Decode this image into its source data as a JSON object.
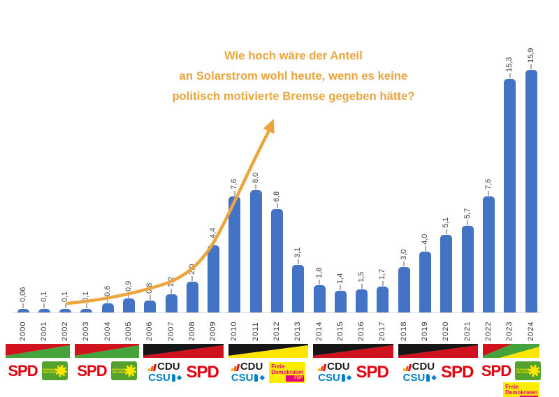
{
  "headline": {
    "line1": "Wie hoch wäre der Anteil",
    "line2": "an Solarstrom wohl heute, wenn es keine",
    "line3": "politisch motivierte Bremse gegeben hätte?"
  },
  "chart_data": {
    "type": "bar",
    "title": "",
    "xlabel": "",
    "ylabel": "",
    "categories": [
      "2000",
      "2001",
      "2002",
      "2003",
      "2004",
      "2005",
      "2006",
      "2007",
      "2008",
      "2009",
      "2010",
      "2011",
      "2012",
      "2013",
      "2014",
      "2015",
      "2016",
      "2017",
      "2018",
      "2019",
      "2020",
      "2021",
      "2022",
      "2023",
      "2024"
    ],
    "values": [
      0.06,
      0.1,
      0.1,
      0.1,
      0.6,
      0.9,
      0.8,
      1.2,
      2.0,
      4.4,
      7.6,
      8.0,
      6.8,
      3.1,
      1.8,
      1.4,
      1.5,
      1.7,
      3.0,
      4.0,
      5.1,
      5.7,
      7.6,
      15.3,
      15.9
    ],
    "value_labels": [
      "0,06",
      "0,1",
      "0,1",
      "0,1",
      "0,6",
      "0,9",
      "0,8",
      "1,2",
      "2,0",
      "4,4",
      "7,6",
      "8,0",
      "6,8",
      "3,1",
      "1,8",
      "1,4",
      "1,5",
      "1,7",
      "3,0",
      "4,0",
      "5,1",
      "5,7",
      "7,6",
      "15,3",
      "15,9"
    ],
    "ylim": [
      0,
      16.5
    ],
    "grid": false,
    "legend": "none",
    "annotation": "orange exponential growth arrow from 2002 to above 2011"
  },
  "coalitions": [
    {
      "span": [
        2000,
        2002
      ],
      "parties": [
        "SPD",
        "Grüne"
      ],
      "flag": [
        "red",
        "green"
      ],
      "logos": [
        "spd",
        "gruene"
      ]
    },
    {
      "span": [
        2003,
        2005
      ],
      "parties": [
        "SPD",
        "Grüne"
      ],
      "flag": [
        "red",
        "green"
      ],
      "logos": [
        "spd",
        "gruene"
      ]
    },
    {
      "span": [
        2006,
        2009
      ],
      "parties": [
        "CDU/CSU",
        "SPD"
      ],
      "flag": [
        "black",
        "red"
      ],
      "logos": [
        "cducsu",
        "spd"
      ]
    },
    {
      "span": [
        2010,
        2013
      ],
      "parties": [
        "CDU/CSU",
        "FDP"
      ],
      "flag": [
        "black",
        "yellow"
      ],
      "logos": [
        "cducsu",
        "fdp"
      ]
    },
    {
      "span": [
        2014,
        2017
      ],
      "parties": [
        "CDU/CSU",
        "SPD"
      ],
      "flag": [
        "black",
        "red"
      ],
      "logos": [
        "cducsu",
        "spd"
      ]
    },
    {
      "span": [
        2018,
        2021
      ],
      "parties": [
        "CDU/CSU",
        "SPD"
      ],
      "flag": [
        "black",
        "red"
      ],
      "logos": [
        "cducsu",
        "spd"
      ]
    },
    {
      "span": [
        2022,
        2024
      ],
      "parties": [
        "SPD",
        "Grüne",
        "FDP"
      ],
      "flag": [
        "red",
        "green",
        "yellow"
      ],
      "logos": [
        "spd",
        "gruene"
      ],
      "fdp_below": true
    }
  ],
  "logos": {
    "spd": "SPD",
    "cdu": "CDU",
    "csu": "CSU",
    "gruene_line1": "BÜNDNIS 90",
    "gruene_line2": "DIE GRÜNEN",
    "fdp_line1": "Freie",
    "fdp_line2": "Demokraten",
    "fdp_abbr": "FDP"
  },
  "colors": {
    "bar": "#4472C4",
    "tick_gray": "#ababab",
    "label_gray": "#404040",
    "accent_orange": "#ECA43C",
    "flag_red": "#D0121F",
    "flag_green": "#45A33C",
    "flag_black": "#161616",
    "flag_yellow": "#FFE501",
    "spd_red": "#E3000F",
    "gruene_green": "#54A12E",
    "gruene_yellow": "#FFE800",
    "cdu_black": "#1D1D1B",
    "cdu_stripe_yellow": "#F9B000",
    "cdu_stripe_orange": "#EA5B0C",
    "cdu_stripe_red": "#E30613",
    "csu_blue": "#0080C8",
    "fdp_yellow": "#FFED00",
    "fdp_magenta": "#E5007D"
  }
}
